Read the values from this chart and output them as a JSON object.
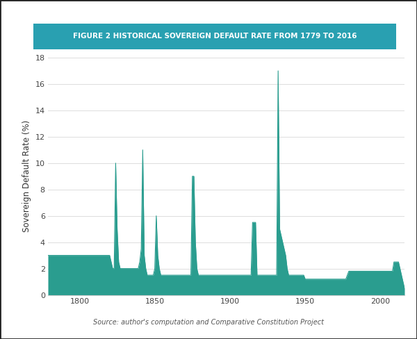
{
  "title": "FIGURE 2 HISTORICAL SOVEREIGN DEFAULT RATE FROM 1779 TO 2016",
  "ylabel": "Sovereign Default Rate (%)",
  "source_text": "Source: author's computation and Comparative Constitution Project",
  "fill_color": "#2a9d8f",
  "title_bg_color": "#29a0b1",
  "title_text_color": "#ffffff",
  "bg_color": "#ffffff",
  "ylim": [
    0,
    18
  ],
  "yticks": [
    0,
    2,
    4,
    6,
    8,
    10,
    12,
    14,
    16,
    18
  ],
  "xticks": [
    1800,
    1850,
    1900,
    1950,
    2000
  ],
  "year_start": 1779,
  "year_end": 2016,
  "data": {
    "years": [
      1779,
      1780,
      1781,
      1782,
      1783,
      1784,
      1785,
      1786,
      1787,
      1788,
      1789,
      1790,
      1791,
      1792,
      1793,
      1794,
      1795,
      1796,
      1797,
      1798,
      1799,
      1800,
      1801,
      1802,
      1803,
      1804,
      1805,
      1806,
      1807,
      1808,
      1809,
      1810,
      1811,
      1812,
      1813,
      1814,
      1815,
      1816,
      1817,
      1818,
      1819,
      1820,
      1821,
      1822,
      1823,
      1824,
      1825,
      1826,
      1827,
      1828,
      1829,
      1830,
      1831,
      1832,
      1833,
      1834,
      1835,
      1836,
      1837,
      1838,
      1839,
      1840,
      1841,
      1842,
      1843,
      1844,
      1845,
      1846,
      1847,
      1848,
      1849,
      1850,
      1851,
      1852,
      1853,
      1854,
      1855,
      1856,
      1857,
      1858,
      1859,
      1860,
      1861,
      1862,
      1863,
      1864,
      1865,
      1866,
      1867,
      1868,
      1869,
      1870,
      1871,
      1872,
      1873,
      1874,
      1875,
      1876,
      1877,
      1878,
      1879,
      1880,
      1881,
      1882,
      1883,
      1884,
      1885,
      1886,
      1887,
      1888,
      1889,
      1890,
      1891,
      1892,
      1893,
      1894,
      1895,
      1896,
      1897,
      1898,
      1899,
      1900,
      1901,
      1902,
      1903,
      1904,
      1905,
      1906,
      1907,
      1908,
      1909,
      1910,
      1911,
      1912,
      1913,
      1914,
      1915,
      1916,
      1917,
      1918,
      1919,
      1920,
      1921,
      1922,
      1923,
      1924,
      1925,
      1926,
      1927,
      1928,
      1929,
      1930,
      1931,
      1932,
      1933,
      1934,
      1935,
      1936,
      1937,
      1938,
      1939,
      1940,
      1941,
      1942,
      1943,
      1944,
      1945,
      1946,
      1947,
      1948,
      1949,
      1950,
      1951,
      1952,
      1953,
      1954,
      1955,
      1956,
      1957,
      1958,
      1959,
      1960,
      1961,
      1962,
      1963,
      1964,
      1965,
      1966,
      1967,
      1968,
      1969,
      1970,
      1971,
      1972,
      1973,
      1974,
      1975,
      1976,
      1977,
      1978,
      1979,
      1980,
      1981,
      1982,
      1983,
      1984,
      1985,
      1986,
      1987,
      1988,
      1989,
      1990,
      1991,
      1992,
      1993,
      1994,
      1995,
      1996,
      1997,
      1998,
      1999,
      2000,
      2001,
      2002,
      2003,
      2004,
      2005,
      2006,
      2007,
      2008,
      2009,
      2010,
      2011,
      2012,
      2013,
      2014,
      2015,
      2016
    ],
    "values": [
      3.0,
      3.0,
      3.0,
      3.0,
      3.0,
      3.0,
      3.0,
      3.0,
      3.0,
      3.0,
      3.0,
      3.0,
      3.0,
      3.0,
      3.0,
      3.0,
      3.0,
      3.0,
      3.0,
      3.0,
      3.0,
      3.0,
      3.0,
      3.0,
      3.0,
      3.0,
      3.0,
      3.0,
      3.0,
      3.0,
      3.0,
      3.0,
      3.0,
      3.0,
      3.0,
      3.0,
      3.0,
      3.0,
      3.0,
      3.0,
      3.0,
      3.0,
      2.5,
      2.0,
      2.0,
      10.0,
      5.0,
      2.5,
      2.0,
      2.0,
      2.0,
      2.0,
      2.0,
      2.0,
      2.0,
      2.0,
      2.0,
      2.0,
      2.0,
      2.0,
      2.0,
      2.5,
      3.5,
      11.0,
      3.0,
      2.0,
      1.5,
      1.5,
      1.5,
      1.5,
      1.5,
      2.0,
      6.0,
      3.0,
      2.0,
      1.5,
      1.5,
      1.5,
      1.5,
      1.5,
      1.5,
      1.5,
      1.5,
      1.5,
      1.5,
      1.5,
      1.5,
      1.5,
      1.5,
      1.5,
      1.5,
      1.5,
      1.5,
      1.5,
      1.5,
      1.5,
      9.0,
      9.0,
      4.0,
      2.0,
      1.5,
      1.5,
      1.5,
      1.5,
      1.5,
      1.5,
      1.5,
      1.5,
      1.5,
      1.5,
      1.5,
      1.5,
      1.5,
      1.5,
      1.5,
      1.5,
      1.5,
      1.5,
      1.5,
      1.5,
      1.5,
      1.5,
      1.5,
      1.5,
      1.5,
      1.5,
      1.5,
      1.5,
      1.5,
      1.5,
      1.5,
      1.5,
      1.5,
      1.5,
      1.5,
      1.5,
      5.5,
      5.5,
      5.5,
      1.5,
      1.5,
      1.5,
      1.5,
      1.5,
      1.5,
      1.5,
      1.5,
      1.5,
      1.5,
      1.5,
      1.5,
      1.5,
      1.5,
      17.0,
      5.0,
      4.5,
      4.0,
      3.5,
      3.0,
      2.0,
      1.5,
      1.5,
      1.5,
      1.5,
      1.5,
      1.5,
      1.5,
      1.5,
      1.5,
      1.5,
      1.5,
      1.2,
      1.2,
      1.2,
      1.2,
      1.2,
      1.2,
      1.2,
      1.2,
      1.2,
      1.2,
      1.2,
      1.2,
      1.2,
      1.2,
      1.2,
      1.2,
      1.2,
      1.2,
      1.2,
      1.2,
      1.2,
      1.2,
      1.2,
      1.2,
      1.2,
      1.2,
      1.2,
      1.2,
      1.5,
      1.8,
      1.8,
      1.8,
      1.8,
      1.8,
      1.8,
      1.8,
      1.8,
      1.8,
      1.8,
      1.8,
      1.8,
      1.8,
      1.8,
      1.8,
      1.8,
      1.8,
      1.8,
      1.8,
      1.8,
      1.8,
      1.8,
      1.8,
      1.8,
      1.8,
      1.8,
      1.8,
      1.8,
      1.8,
      1.8,
      2.5,
      2.5,
      2.5,
      2.5,
      2.0,
      1.5,
      1.0,
      0.5
    ]
  }
}
